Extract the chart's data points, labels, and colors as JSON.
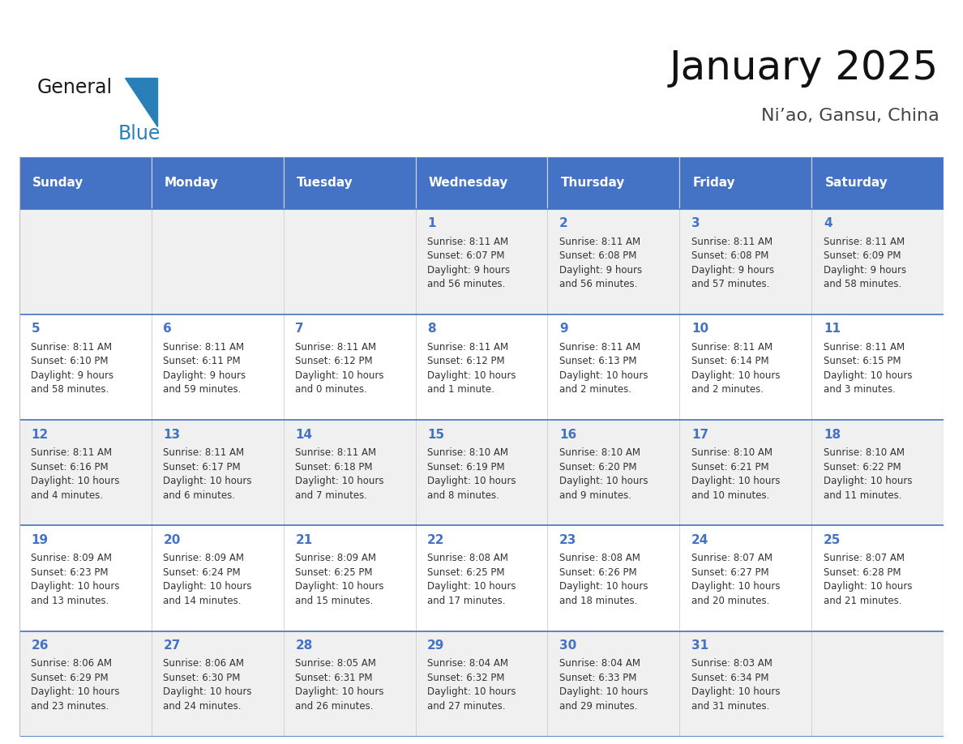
{
  "title": "January 2025",
  "subtitle": "Ni’ao, Gansu, China",
  "header_color": "#4472C4",
  "header_text_color": "#FFFFFF",
  "cell_bg_odd": "#F0F0F0",
  "cell_bg_even": "#FFFFFF",
  "text_color": "#333333",
  "days_of_week": [
    "Sunday",
    "Monday",
    "Tuesday",
    "Wednesday",
    "Thursday",
    "Friday",
    "Saturday"
  ],
  "weeks": [
    [
      {
        "day": "",
        "text": ""
      },
      {
        "day": "",
        "text": ""
      },
      {
        "day": "",
        "text": ""
      },
      {
        "day": "1",
        "text": "Sunrise: 8:11 AM\nSunset: 6:07 PM\nDaylight: 9 hours\nand 56 minutes."
      },
      {
        "day": "2",
        "text": "Sunrise: 8:11 AM\nSunset: 6:08 PM\nDaylight: 9 hours\nand 56 minutes."
      },
      {
        "day": "3",
        "text": "Sunrise: 8:11 AM\nSunset: 6:08 PM\nDaylight: 9 hours\nand 57 minutes."
      },
      {
        "day": "4",
        "text": "Sunrise: 8:11 AM\nSunset: 6:09 PM\nDaylight: 9 hours\nand 58 minutes."
      }
    ],
    [
      {
        "day": "5",
        "text": "Sunrise: 8:11 AM\nSunset: 6:10 PM\nDaylight: 9 hours\nand 58 minutes."
      },
      {
        "day": "6",
        "text": "Sunrise: 8:11 AM\nSunset: 6:11 PM\nDaylight: 9 hours\nand 59 minutes."
      },
      {
        "day": "7",
        "text": "Sunrise: 8:11 AM\nSunset: 6:12 PM\nDaylight: 10 hours\nand 0 minutes."
      },
      {
        "day": "8",
        "text": "Sunrise: 8:11 AM\nSunset: 6:12 PM\nDaylight: 10 hours\nand 1 minute."
      },
      {
        "day": "9",
        "text": "Sunrise: 8:11 AM\nSunset: 6:13 PM\nDaylight: 10 hours\nand 2 minutes."
      },
      {
        "day": "10",
        "text": "Sunrise: 8:11 AM\nSunset: 6:14 PM\nDaylight: 10 hours\nand 2 minutes."
      },
      {
        "day": "11",
        "text": "Sunrise: 8:11 AM\nSunset: 6:15 PM\nDaylight: 10 hours\nand 3 minutes."
      }
    ],
    [
      {
        "day": "12",
        "text": "Sunrise: 8:11 AM\nSunset: 6:16 PM\nDaylight: 10 hours\nand 4 minutes."
      },
      {
        "day": "13",
        "text": "Sunrise: 8:11 AM\nSunset: 6:17 PM\nDaylight: 10 hours\nand 6 minutes."
      },
      {
        "day": "14",
        "text": "Sunrise: 8:11 AM\nSunset: 6:18 PM\nDaylight: 10 hours\nand 7 minutes."
      },
      {
        "day": "15",
        "text": "Sunrise: 8:10 AM\nSunset: 6:19 PM\nDaylight: 10 hours\nand 8 minutes."
      },
      {
        "day": "16",
        "text": "Sunrise: 8:10 AM\nSunset: 6:20 PM\nDaylight: 10 hours\nand 9 minutes."
      },
      {
        "day": "17",
        "text": "Sunrise: 8:10 AM\nSunset: 6:21 PM\nDaylight: 10 hours\nand 10 minutes."
      },
      {
        "day": "18",
        "text": "Sunrise: 8:10 AM\nSunset: 6:22 PM\nDaylight: 10 hours\nand 11 minutes."
      }
    ],
    [
      {
        "day": "19",
        "text": "Sunrise: 8:09 AM\nSunset: 6:23 PM\nDaylight: 10 hours\nand 13 minutes."
      },
      {
        "day": "20",
        "text": "Sunrise: 8:09 AM\nSunset: 6:24 PM\nDaylight: 10 hours\nand 14 minutes."
      },
      {
        "day": "21",
        "text": "Sunrise: 8:09 AM\nSunset: 6:25 PM\nDaylight: 10 hours\nand 15 minutes."
      },
      {
        "day": "22",
        "text": "Sunrise: 8:08 AM\nSunset: 6:25 PM\nDaylight: 10 hours\nand 17 minutes."
      },
      {
        "day": "23",
        "text": "Sunrise: 8:08 AM\nSunset: 6:26 PM\nDaylight: 10 hours\nand 18 minutes."
      },
      {
        "day": "24",
        "text": "Sunrise: 8:07 AM\nSunset: 6:27 PM\nDaylight: 10 hours\nand 20 minutes."
      },
      {
        "day": "25",
        "text": "Sunrise: 8:07 AM\nSunset: 6:28 PM\nDaylight: 10 hours\nand 21 minutes."
      }
    ],
    [
      {
        "day": "26",
        "text": "Sunrise: 8:06 AM\nSunset: 6:29 PM\nDaylight: 10 hours\nand 23 minutes."
      },
      {
        "day": "27",
        "text": "Sunrise: 8:06 AM\nSunset: 6:30 PM\nDaylight: 10 hours\nand 24 minutes."
      },
      {
        "day": "28",
        "text": "Sunrise: 8:05 AM\nSunset: 6:31 PM\nDaylight: 10 hours\nand 26 minutes."
      },
      {
        "day": "29",
        "text": "Sunrise: 8:04 AM\nSunset: 6:32 PM\nDaylight: 10 hours\nand 27 minutes."
      },
      {
        "day": "30",
        "text": "Sunrise: 8:04 AM\nSunset: 6:33 PM\nDaylight: 10 hours\nand 29 minutes."
      },
      {
        "day": "31",
        "text": "Sunrise: 8:03 AM\nSunset: 6:34 PM\nDaylight: 10 hours\nand 31 minutes."
      },
      {
        "day": "",
        "text": ""
      }
    ]
  ],
  "logo_color_general": "#1a1a1a",
  "logo_color_blue": "#2980B9",
  "logo_triangle_color": "#2980B9",
  "title_fontsize": 36,
  "subtitle_fontsize": 16,
  "dow_fontsize": 11,
  "day_num_fontsize": 11,
  "cell_text_fontsize": 8.5
}
